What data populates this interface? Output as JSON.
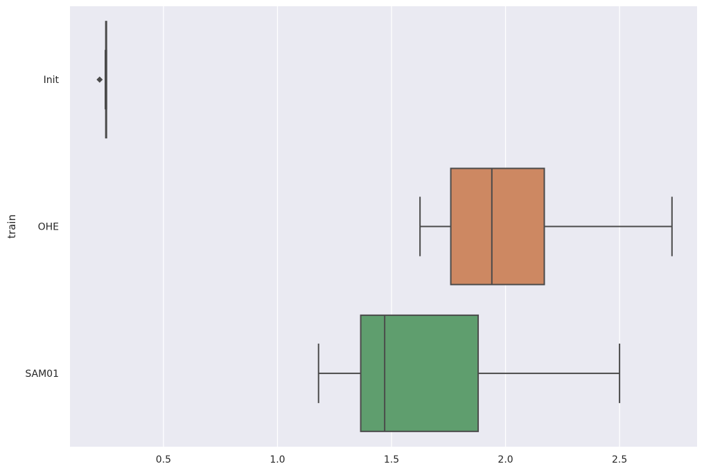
{
  "chart_data": {
    "type": "boxplot",
    "orientation": "horizontal",
    "title": "",
    "xlabel": "",
    "ylabel": "train",
    "xlim": [
      0.09,
      2.84
    ],
    "xticks": [
      0.5,
      1.0,
      1.5,
      2.0,
      2.5
    ],
    "xtick_labels": [
      "0.5",
      "1.0",
      "1.5",
      "2.0",
      "2.5"
    ],
    "grid": true,
    "colors": {
      "background": "#eaeaf2",
      "grid": "#ffffff",
      "line": "#4a4a4a",
      "text": "#262626"
    },
    "categories": [
      "Init",
      "OHE",
      "SAM01"
    ],
    "boxes": [
      {
        "category": "Init",
        "color": "#4c72b0",
        "whislo": 0.245,
        "q1": 0.247,
        "med": 0.248,
        "q3": 0.249,
        "whishi": 0.25,
        "fliers": [
          0.22
        ]
      },
      {
        "category": "OHE",
        "color": "#cd8862",
        "whislo": 1.625,
        "q1": 1.76,
        "med": 1.94,
        "q3": 2.17,
        "whishi": 2.73,
        "fliers": []
      },
      {
        "category": "SAM01",
        "color": "#5f9e6e",
        "whislo": 1.18,
        "q1": 1.365,
        "med": 1.47,
        "q3": 1.88,
        "whishi": 2.5,
        "fliers": []
      }
    ]
  }
}
